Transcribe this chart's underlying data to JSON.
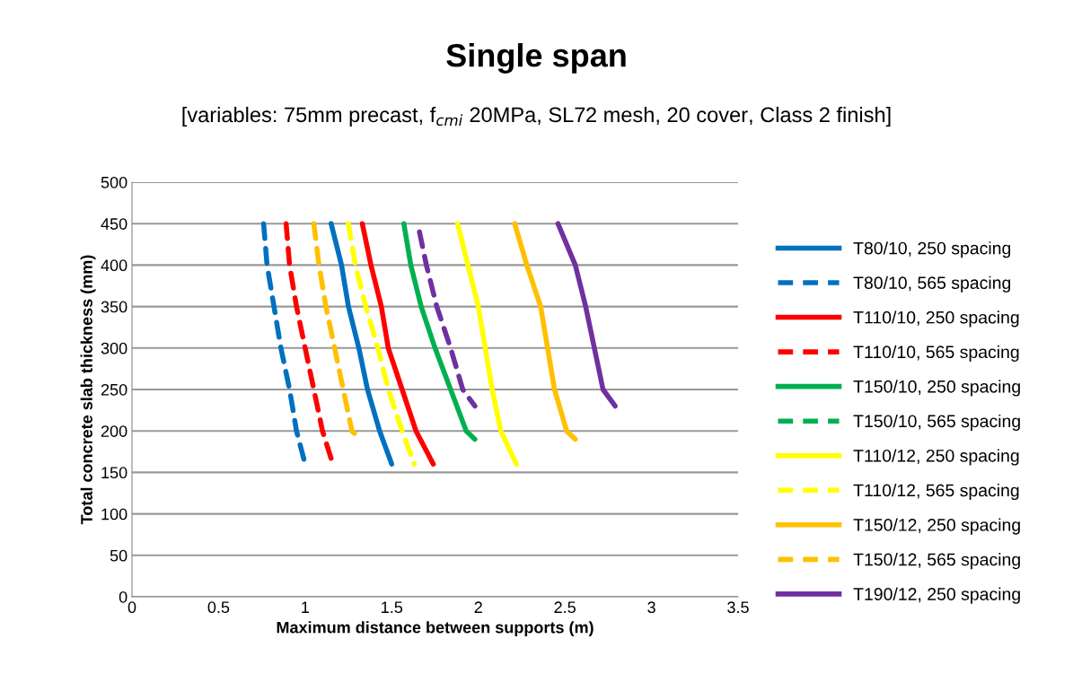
{
  "chart_data": {
    "type": "line",
    "title": "Single span",
    "subtitle": "[variables: 75mm precast, f$_{cmi}$ 20MPa, SL72 mesh, 20 cover, Class 2 finish]",
    "xlabel": "Maximum distance between supports (m)",
    "ylabel": "Total concrete slab thickness (mm)",
    "xlim": [
      0,
      3.5
    ],
    "xticks": [
      0,
      0.5,
      1,
      1.5,
      2,
      2.5,
      3,
      3.5
    ],
    "ylim": [
      0,
      500
    ],
    "yticks": [
      0,
      50,
      100,
      150,
      200,
      250,
      300,
      350,
      400,
      450,
      500
    ],
    "grid": "y",
    "legend": "right",
    "marker": "none",
    "series": [
      {
        "name": "T80/10, 250 spacing",
        "color": "#0070c0",
        "line_style": "solid",
        "x": [
          1.15,
          1.21,
          1.25,
          1.31,
          1.36,
          1.43,
          1.5
        ],
        "values": [
          450,
          400,
          350,
          300,
          250,
          200,
          160
        ]
      },
      {
        "name": "T80/10, 565 spacing",
        "color": "#0070c0",
        "line_style": "dashed",
        "x": [
          0.76,
          0.78,
          0.82,
          0.86,
          0.91,
          0.95,
          1.0
        ],
        "values": [
          450,
          400,
          350,
          300,
          250,
          200,
          160
        ]
      },
      {
        "name": "T110/10, 250 spacing",
        "color": "#ff0000",
        "line_style": "solid",
        "x": [
          1.33,
          1.38,
          1.44,
          1.48,
          1.56,
          1.64,
          1.74
        ],
        "values": [
          450,
          400,
          350,
          300,
          250,
          200,
          160
        ]
      },
      {
        "name": "T110/10, 565 spacing",
        "color": "#ff0000",
        "line_style": "dashed",
        "x": [
          0.89,
          0.91,
          0.95,
          1.0,
          1.05,
          1.1,
          1.16
        ],
        "values": [
          450,
          400,
          350,
          300,
          250,
          200,
          160
        ]
      },
      {
        "name": "T150/10, 250 spacing",
        "color": "#00b050",
        "line_style": "solid",
        "x": [
          1.57,
          1.61,
          1.67,
          1.75,
          1.84,
          1.93,
          1.98
        ],
        "values": [
          450,
          400,
          350,
          300,
          250,
          200,
          190
        ]
      },
      {
        "name": "T150/10, 565 spacing",
        "color": "#00b050",
        "line_style": "dashed"
      },
      {
        "name": "T110/12, 250 spacing",
        "color": "#ffff00",
        "line_style": "solid",
        "x": [
          1.88,
          1.94,
          2.0,
          2.04,
          2.08,
          2.13,
          2.22
        ],
        "values": [
          450,
          400,
          350,
          300,
          250,
          200,
          160
        ]
      },
      {
        "name": "T110/12, 565 spacing",
        "color": "#ffff00",
        "line_style": "dashed",
        "x": [
          1.25,
          1.29,
          1.35,
          1.42,
          1.48,
          1.56,
          1.63
        ],
        "values": [
          450,
          400,
          350,
          300,
          250,
          200,
          160
        ]
      },
      {
        "name": "T150/12, 250 spacing",
        "color": "#ffc000",
        "line_style": "solid",
        "x": [
          2.21,
          2.28,
          2.36,
          2.4,
          2.44,
          2.51,
          2.56
        ],
        "values": [
          450,
          400,
          350,
          300,
          250,
          200,
          190
        ]
      },
      {
        "name": "T150/12, 565 spacing",
        "color": "#ffc000",
        "line_style": "dashed",
        "x": [
          1.05,
          1.08,
          1.12,
          1.17,
          1.22,
          1.27,
          1.32
        ],
        "values": [
          450,
          400,
          350,
          300,
          250,
          200,
          190
        ]
      },
      {
        "name": "T190/12, 250 spacing",
        "color": "#7030a0",
        "line_style": "solid",
        "x": [
          2.46,
          2.56,
          2.62,
          2.67,
          2.72,
          2.79
        ],
        "values": [
          450,
          400,
          350,
          300,
          250,
          230
        ]
      },
      {
        "color": "#7030a0",
        "line_style": "dashed",
        "x": [
          1.66,
          1.7,
          1.76,
          1.84,
          1.91,
          1.98
        ],
        "values": [
          440,
          400,
          350,
          300,
          250,
          230
        ]
      }
    ]
  }
}
